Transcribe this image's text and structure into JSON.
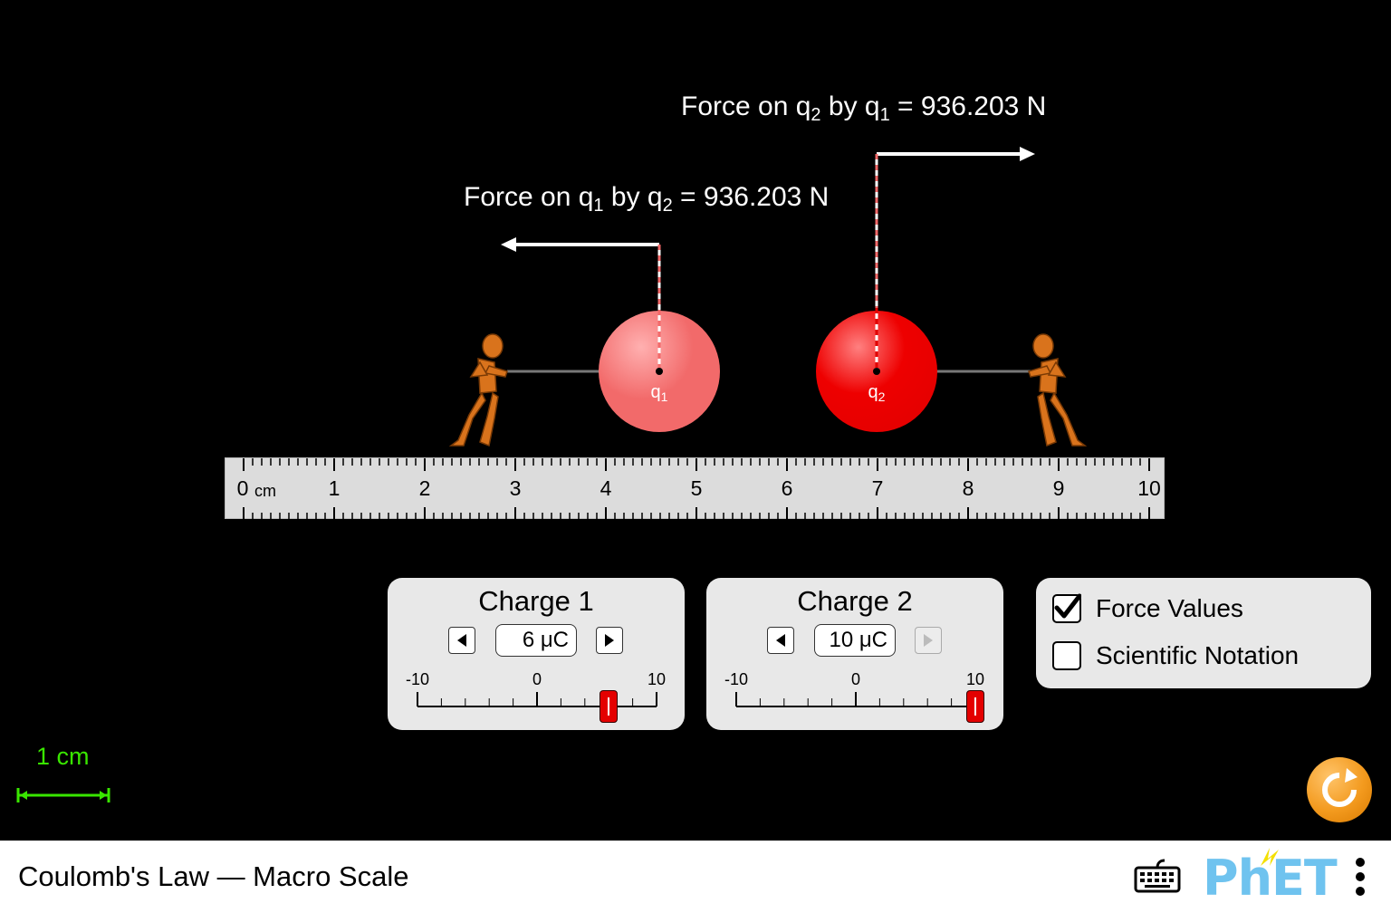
{
  "sim": {
    "screen_title": "Coulomb's Law — Macro Scale"
  },
  "forces": {
    "on_q2": {
      "prefix": "Force on q",
      "sub_a": "2",
      "mid": " by q",
      "sub_b": "1",
      "suffix": " = 936.203 N"
    },
    "on_q1": {
      "prefix": "Force on q",
      "sub_a": "1",
      "mid": " by q",
      "sub_b": "2",
      "suffix": " = 936.203 N"
    }
  },
  "charges": {
    "q1": {
      "label": "q",
      "sub": "1",
      "color": "#f26a6a"
    },
    "q2": {
      "label": "q",
      "sub": "2",
      "color": "#ee0000"
    }
  },
  "ruler": {
    "unit": "cm",
    "numbers": [
      "0",
      "1",
      "2",
      "3",
      "4",
      "5",
      "6",
      "7",
      "8",
      "9",
      "10"
    ]
  },
  "charge1_panel": {
    "title": "Charge 1",
    "value": "6 μC",
    "slider": {
      "min_label": "-10",
      "mid_label": "0",
      "max_label": "10",
      "value": 6
    }
  },
  "charge2_panel": {
    "title": "Charge 2",
    "value": "10 μC",
    "slider": {
      "min_label": "-10",
      "mid_label": "0",
      "max_label": "10",
      "value": 10
    }
  },
  "options": {
    "force_values": {
      "label": "Force Values",
      "checked": true
    },
    "scientific_notation": {
      "label": "Scientific Notation",
      "checked": false
    }
  },
  "scale_indicator": {
    "label": "1 cm",
    "color": "#39e600"
  },
  "accent": {
    "reset": "#f39a1e",
    "phet_blue": "#6fc3ef",
    "phet_yellow": "#f4e000"
  },
  "logo": {
    "text": "PhET"
  }
}
